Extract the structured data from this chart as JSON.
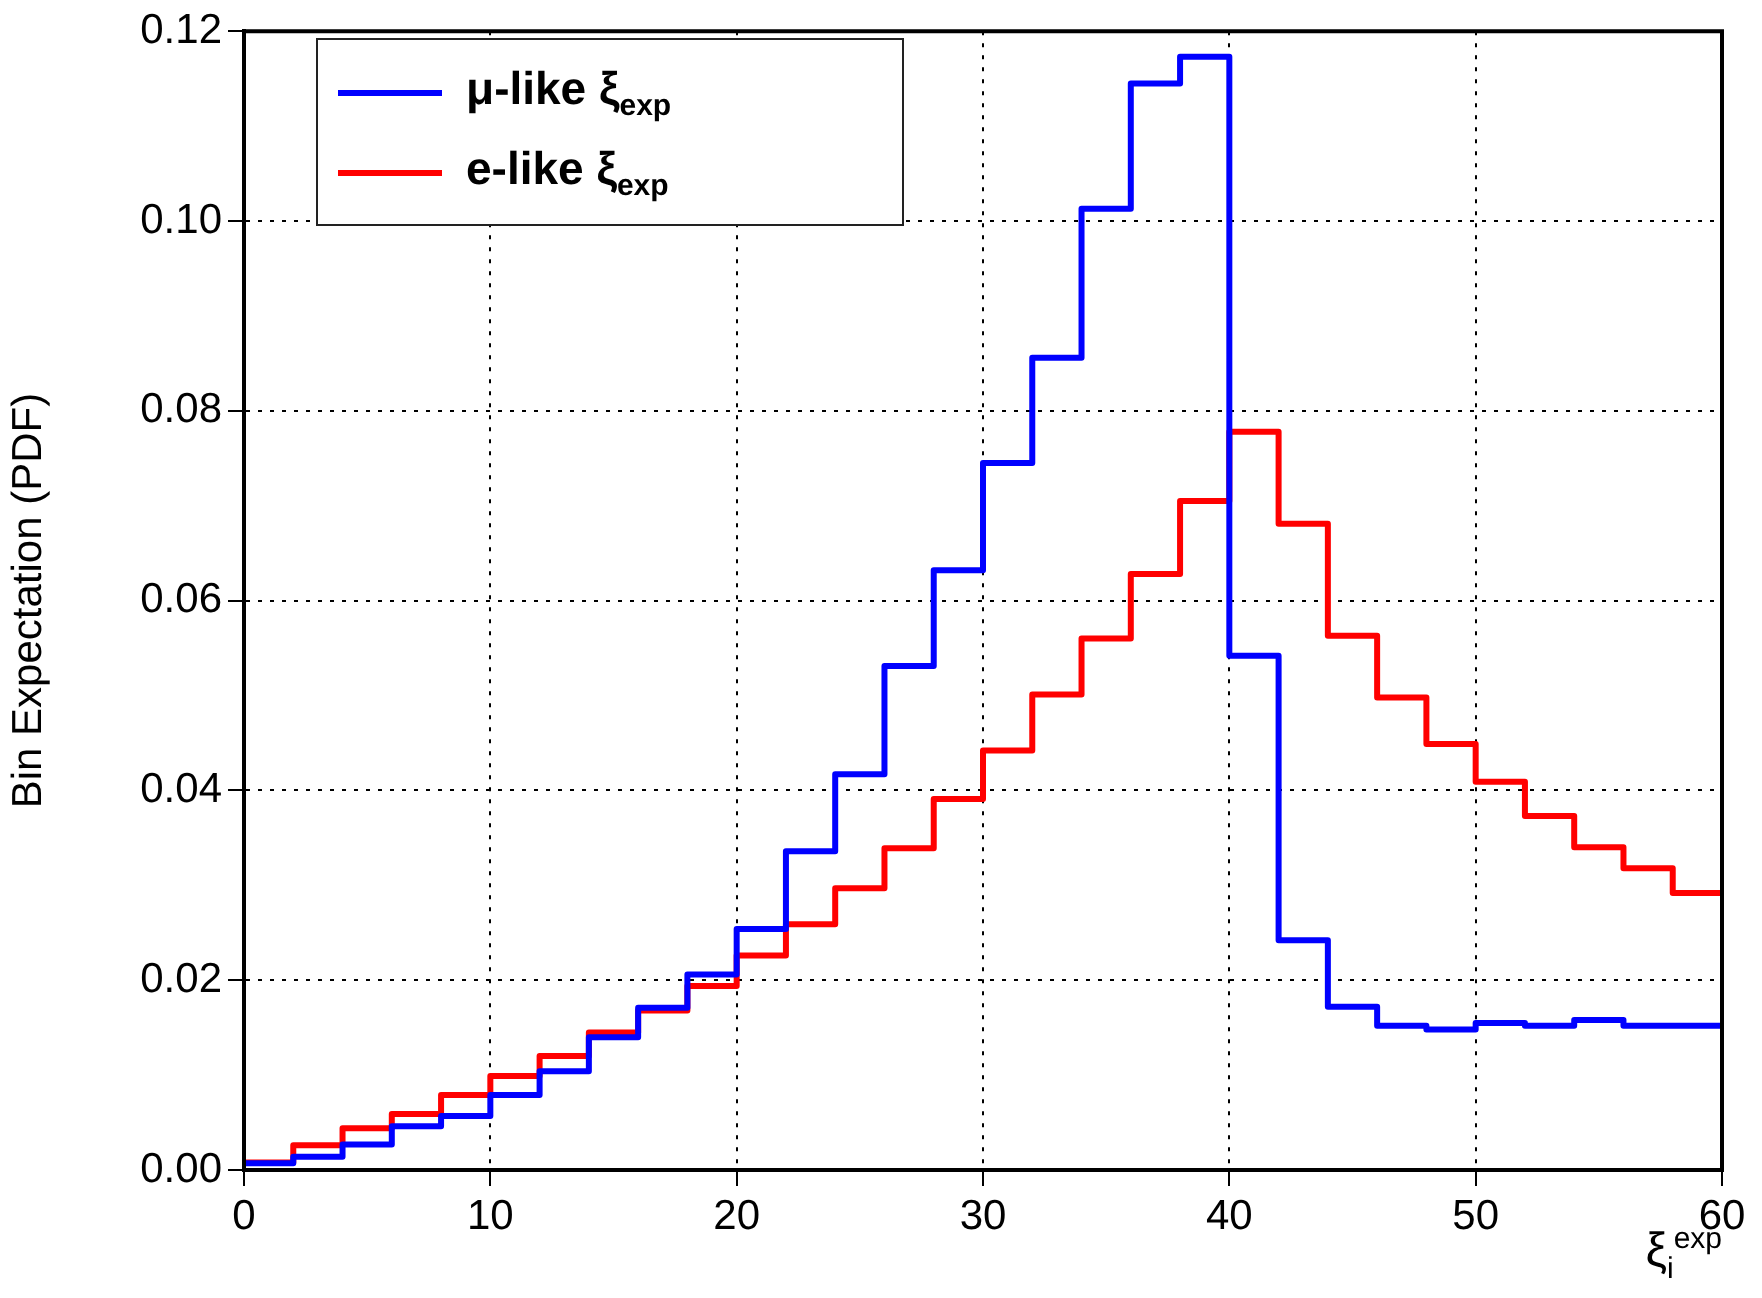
{
  "chart_data": {
    "type": "histogram",
    "ylabel": "Bin Expectation (PDF)",
    "xlabel": "ξ$_{i}$$^{exp}$",
    "bins": [
      0,
      2,
      4,
      6,
      8,
      10,
      12,
      14,
      16,
      18,
      20,
      22,
      24,
      26,
      28,
      30,
      32,
      34,
      36,
      38,
      40,
      42,
      44,
      46,
      48,
      50,
      52,
      54,
      56,
      58,
      60
    ],
    "series": [
      {
        "name": "μ-like ξ$_{exp}$",
        "color": "#0000ff",
        "values": [
          0.0007,
          0.0014,
          0.0027,
          0.0046,
          0.0057,
          0.0079,
          0.0104,
          0.014,
          0.0171,
          0.0206,
          0.0254,
          0.0336,
          0.0417,
          0.0531,
          0.0632,
          0.0745,
          0.0856,
          0.1013,
          0.1145,
          0.1173,
          0.0542,
          0.0242,
          0.0172,
          0.0152,
          0.0148,
          0.0155,
          0.0152,
          0.0158,
          0.0152,
          0.0152
        ]
      },
      {
        "name": "e-like ξ$_{exp}$",
        "color": "#ff0000",
        "values": [
          0.0008,
          0.0026,
          0.0044,
          0.0059,
          0.0079,
          0.0099,
          0.012,
          0.0145,
          0.0168,
          0.0194,
          0.0226,
          0.0259,
          0.0297,
          0.0339,
          0.0391,
          0.0442,
          0.0501,
          0.056,
          0.0628,
          0.0705,
          0.0778,
          0.0681,
          0.0563,
          0.0498,
          0.0449,
          0.0409,
          0.0373,
          0.034,
          0.0318,
          0.0292
        ]
      }
    ],
    "xlim": [
      0,
      60
    ],
    "xticks": [
      0,
      10,
      20,
      30,
      40,
      50,
      60
    ],
    "ylim": [
      0,
      0.12
    ],
    "yticks": [
      {
        "value": 0,
        "label": "0.00"
      },
      {
        "value": 0.02,
        "label": "0.02"
      },
      {
        "value": 0.04,
        "label": "0.04"
      },
      {
        "value": 0.06,
        "label": "0.06"
      },
      {
        "value": 0.08,
        "label": "0.08"
      },
      {
        "value": 0.1,
        "label": "0.10"
      },
      {
        "value": 0.12,
        "label": "0.12"
      }
    ],
    "grid": true,
    "legend": "top left"
  }
}
